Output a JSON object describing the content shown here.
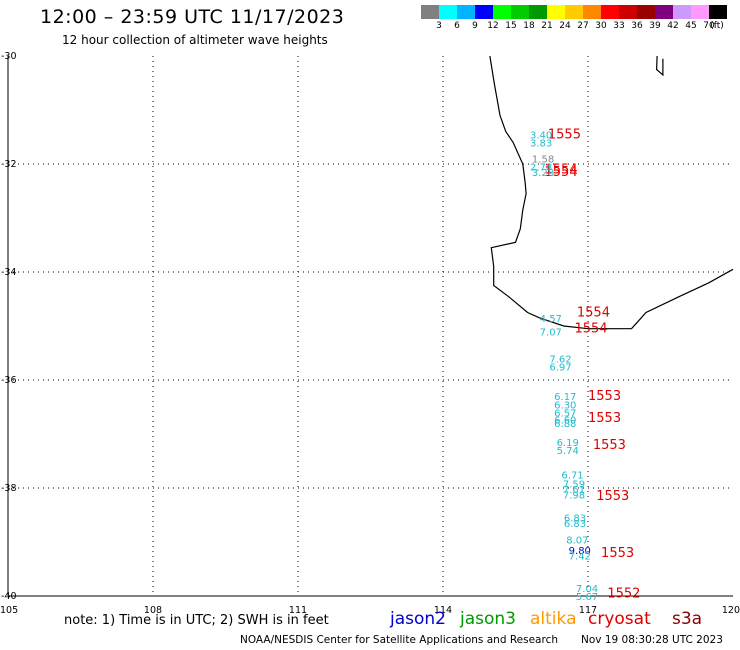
{
  "header": {
    "title": "12:00 – 23:59 UTC 11/17/2023",
    "subtitle": "12 hour collection of altimeter wave heights"
  },
  "colorbar": {
    "colors": [
      "#808080",
      "#00ffff",
      "#00b4ff",
      "#0000ff",
      "#00ff00",
      "#00cc00",
      "#009900",
      "#ffff00",
      "#ffcc00",
      "#ff8800",
      "#ff0000",
      "#cc0000",
      "#990000",
      "#800080",
      "#cc99ff",
      "#ff99ff",
      "#000000"
    ],
    "labels": [
      "3",
      "6",
      "9",
      "12",
      "15",
      "18",
      "21",
      "24",
      "27",
      "30",
      "33",
      "36",
      "39",
      "42",
      "45",
      "70",
      "(ft)"
    ]
  },
  "axes": {
    "lon_ticks": [
      "105",
      "108",
      "111",
      "114",
      "117",
      "120"
    ],
    "lat_ticks": [
      "-30",
      "-32",
      "-34",
      "-36",
      "-38",
      "-40"
    ]
  },
  "map_data": {
    "lon_range": [
      105,
      120
    ],
    "lat_range": [
      -40,
      -30
    ],
    "coastline": [
      [
        [
          114.97,
          -30.0
        ],
        [
          115.06,
          -30.5
        ],
        [
          115.18,
          -31.1
        ],
        [
          115.3,
          -31.4
        ],
        [
          115.45,
          -31.6
        ],
        [
          115.65,
          -32.0
        ],
        [
          115.7,
          -32.35
        ],
        [
          115.72,
          -32.55
        ],
        [
          115.65,
          -32.85
        ],
        [
          115.6,
          -33.2
        ],
        [
          115.5,
          -33.45
        ],
        [
          115.0,
          -33.55
        ],
        [
          115.05,
          -33.9
        ],
        [
          115.05,
          -34.25
        ],
        [
          115.35,
          -34.45
        ],
        [
          115.75,
          -34.75
        ],
        [
          116.0,
          -34.85
        ],
        [
          116.5,
          -35.0
        ],
        [
          117.0,
          -35.05
        ],
        [
          117.5,
          -35.05
        ],
        [
          117.9,
          -35.05
        ],
        [
          118.2,
          -34.75
        ],
        [
          118.9,
          -34.45
        ],
        [
          119.5,
          -34.2
        ],
        [
          120.0,
          -33.95
        ]
      ],
      [
        [
          118.43,
          -30.0
        ],
        [
          118.42,
          -30.25
        ],
        [
          118.55,
          -30.35
        ],
        [
          118.55,
          -30.05
        ]
      ]
    ],
    "tracks": [
      {
        "label": "1555",
        "color": "#dd0000",
        "lon": 116.17,
        "lat": -31.45
      },
      {
        "label": "1554",
        "color": "#dd0000",
        "lon": 116.1,
        "lat": -32.1
      },
      {
        "label": "1554",
        "color": "#dd0000",
        "lon": 116.1,
        "lat": -32.15
      },
      {
        "label": "1554",
        "color": "#dd0000",
        "lon": 116.77,
        "lat": -34.75
      },
      {
        "label": "1554",
        "color": "#dd0000",
        "lon": 116.72,
        "lat": -35.05
      },
      {
        "label": "1553",
        "color": "#dd0000",
        "lon": 117.0,
        "lat": -36.3
      },
      {
        "label": "1553",
        "color": "#dd0000",
        "lon": 117.0,
        "lat": -36.7
      },
      {
        "label": "1553",
        "color": "#dd0000",
        "lon": 117.1,
        "lat": -37.2
      },
      {
        "label": "1553",
        "color": "#dd0000",
        "lon": 117.17,
        "lat": -38.15
      },
      {
        "label": "1553",
        "color": "#dd0000",
        "lon": 117.27,
        "lat": -39.2
      },
      {
        "label": "1552",
        "color": "#dd0000",
        "lon": 117.4,
        "lat": -39.95
      }
    ],
    "wave_heights": [
      {
        "value": "3.40",
        "color": "#22bbcc",
        "lon": 115.8,
        "lat": -31.45
      },
      {
        "value": "3.83",
        "color": "#22bbcc",
        "lon": 115.8,
        "lat": -31.6
      },
      {
        "value": "1.58",
        "color": "#888888",
        "lon": 115.84,
        "lat": -31.9
      },
      {
        "value": "2.78",
        "color": "#22bbcc",
        "lon": 115.8,
        "lat": -32.05
      },
      {
        "value": "3.28",
        "color": "#22bbcc",
        "lon": 115.84,
        "lat": -32.15
      },
      {
        "value": "4.57",
        "color": "#22bbcc",
        "lon": 116.0,
        "lat": -34.85
      },
      {
        "value": "7.07",
        "color": "#22bbcc",
        "lon": 116.0,
        "lat": -35.1
      },
      {
        "value": "7.62",
        "color": "#22bbcc",
        "lon": 116.2,
        "lat": -35.6
      },
      {
        "value": "6.97",
        "color": "#22bbcc",
        "lon": 116.2,
        "lat": -35.75
      },
      {
        "value": "6.17",
        "color": "#22bbcc",
        "lon": 116.3,
        "lat": -36.3
      },
      {
        "value": "6.30",
        "color": "#22bbcc",
        "lon": 116.3,
        "lat": -36.45
      },
      {
        "value": "6.57",
        "color": "#22bbcc",
        "lon": 116.3,
        "lat": -36.6
      },
      {
        "value": "6.60",
        "color": "#22bbcc",
        "lon": 116.3,
        "lat": -36.73
      },
      {
        "value": "6.88",
        "color": "#22bbcc",
        "lon": 116.3,
        "lat": -36.8
      },
      {
        "value": "6.19",
        "color": "#22bbcc",
        "lon": 116.35,
        "lat": -37.15
      },
      {
        "value": "5.74",
        "color": "#22bbcc",
        "lon": 116.35,
        "lat": -37.3
      },
      {
        "value": "6.71",
        "color": "#22bbcc",
        "lon": 116.45,
        "lat": -37.75
      },
      {
        "value": "7.59",
        "color": "#22bbcc",
        "lon": 116.48,
        "lat": -37.92
      },
      {
        "value": "7.61",
        "color": "#22bbcc",
        "lon": 116.48,
        "lat": -38.02
      },
      {
        "value": "7.98",
        "color": "#22bbcc",
        "lon": 116.48,
        "lat": -38.12
      },
      {
        "value": "6.83",
        "color": "#22bbcc",
        "lon": 116.5,
        "lat": -38.55
      },
      {
        "value": "6.83",
        "color": "#22bbcc",
        "lon": 116.5,
        "lat": -38.65
      },
      {
        "value": "8.07",
        "color": "#22bbcc",
        "lon": 116.55,
        "lat": -38.95
      },
      {
        "value": "9.80",
        "color": "#0000cc",
        "lon": 116.6,
        "lat": -39.15
      },
      {
        "value": "7.42",
        "color": "#22bbcc",
        "lon": 116.6,
        "lat": -39.25
      },
      {
        "value": "7.04",
        "color": "#22bbcc",
        "lon": 116.75,
        "lat": -39.85
      },
      {
        "value": "5.67",
        "color": "#22bbcc",
        "lon": 116.75,
        "lat": -40.0
      }
    ]
  },
  "legend": {
    "note": "note:  1) Time is in UTC;  2) SWH is in feet",
    "satellites": [
      {
        "name": "jason2",
        "color": "#0000cc"
      },
      {
        "name": "jason3",
        "color": "#009900"
      },
      {
        "name": "altika",
        "color": "#ff9900"
      },
      {
        "name": "cryosat",
        "color": "#dd0000"
      },
      {
        "name": "s3a",
        "color": "#880000"
      }
    ]
  },
  "footer": {
    "credit": "NOAA/NESDIS Center for Satellite Applications and Research",
    "timestamp": "Nov 19 08:30:28 UTC 2023"
  }
}
